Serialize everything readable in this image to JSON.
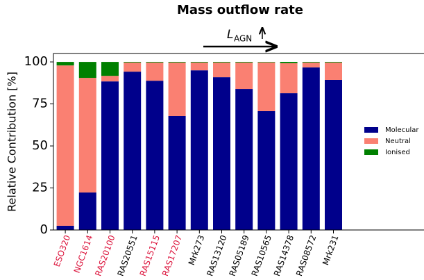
{
  "chart_data": {
    "type": "stacked_bar",
    "title": "Mass outflow rate",
    "annotation": {
      "text": "L",
      "subscript": "AGN"
    },
    "y_label": "Relative Contribution [%]",
    "categories": [
      "ESO320",
      "NGC1614",
      "RAS20100",
      "RAS20551",
      "RAS15115",
      "RAS17207",
      "Mrk273",
      "RAS13120",
      "RAS05189",
      "RAS10565",
      "RAS14378",
      "RAS08572",
      "Mrk231"
    ],
    "category_colors": [
      "#dc143c",
      "#dc143c",
      "#dc143c",
      "#000000",
      "#dc143c",
      "#dc143c",
      "#000000",
      "#000000",
      "#000000",
      "#000000",
      "#000000",
      "#000000",
      "#000000"
    ],
    "series": [
      {
        "name": "Molecular",
        "color": "#00008b",
        "values": [
          2.5,
          22.3,
          88.4,
          94.2,
          88.8,
          67.8,
          95.0,
          90.9,
          83.9,
          70.7,
          81.4,
          96.7,
          89.3
        ]
      },
      {
        "name": "Neutral",
        "color": "#fa8072",
        "values": [
          95.4,
          68.2,
          3.3,
          5.4,
          10.8,
          31.8,
          4.6,
          8.7,
          15.7,
          29.0,
          17.8,
          2.9,
          10.3
        ]
      },
      {
        "name": "Ionised",
        "color": "#008000",
        "values": [
          2.1,
          9.5,
          8.3,
          0.4,
          0.4,
          0.4,
          0.4,
          0.4,
          0.4,
          0.3,
          0.8,
          0.4,
          0.4
        ]
      }
    ],
    "ylim": [
      0,
      105
    ],
    "yticks": [
      0,
      25,
      50,
      75,
      100
    ],
    "legend": "right"
  }
}
